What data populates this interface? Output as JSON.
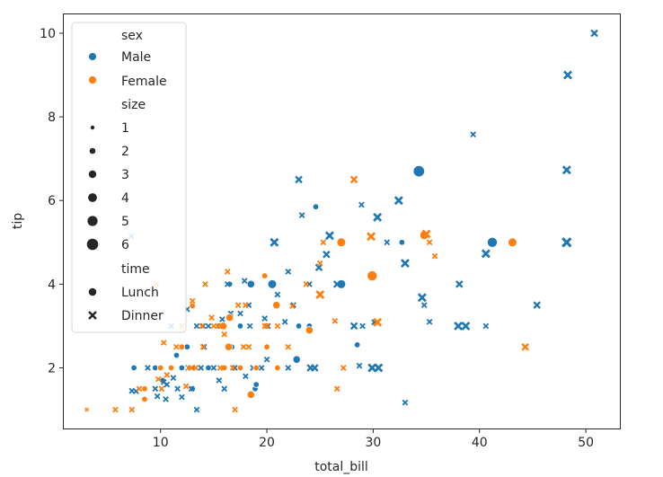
{
  "chart_data": {
    "type": "scatter",
    "xlabel": "total_bill",
    "ylabel": "tip",
    "xlim": [
      0.9,
      53.2
    ],
    "ylim": [
      0.55,
      10.45
    ],
    "xticks": [
      10,
      20,
      30,
      40,
      50
    ],
    "yticks": [
      2,
      4,
      6,
      8,
      10
    ],
    "grid": false,
    "legend_position": "upper-left",
    "legend": {
      "hue_title": "sex",
      "hue": [
        {
          "label": "Male",
          "color": "#1f77b4"
        },
        {
          "label": "Female",
          "color": "#ff7f0e"
        }
      ],
      "size_title": "size",
      "sizes": [
        "1",
        "2",
        "3",
        "4",
        "5",
        "6"
      ],
      "style_title": "time",
      "styles": [
        {
          "label": "Lunch",
          "marker": "circle"
        },
        {
          "label": "Dinner",
          "marker": "x"
        }
      ]
    },
    "series": [
      {
        "name": "Male / Lunch",
        "sex": "Male",
        "time": "Lunch",
        "color": "#1f77b4",
        "marker": "circle",
        "points": [
          [
            34.3,
            6.7,
            6
          ],
          [
            41.2,
            5.0,
            5
          ],
          [
            24.6,
            5.85,
            2
          ],
          [
            32.7,
            5.0,
            2
          ],
          [
            27.0,
            4.0,
            4
          ],
          [
            20.5,
            4.0,
            4
          ],
          [
            18.5,
            4.0,
            3
          ],
          [
            16.5,
            4.0,
            2
          ],
          [
            28.5,
            2.55,
            2
          ],
          [
            22.8,
            2.2,
            3
          ],
          [
            18.9,
            1.5,
            2
          ],
          [
            11.5,
            2.3,
            2
          ],
          [
            7.5,
            2.0,
            2
          ],
          [
            9.5,
            2.0,
            2
          ],
          [
            12.5,
            2.5,
            2
          ],
          [
            14.5,
            2.0,
            2
          ],
          [
            16.0,
            2.0,
            2
          ],
          [
            19.0,
            1.6,
            2
          ],
          [
            13.0,
            1.5,
            2
          ],
          [
            12.0,
            2.0,
            2
          ],
          [
            16.7,
            2.5,
            2
          ],
          [
            17.5,
            3.0,
            2
          ],
          [
            20.0,
            3.0,
            2
          ],
          [
            24.0,
            3.0,
            2
          ],
          [
            10.2,
            1.7,
            2
          ],
          [
            15.5,
            3.0,
            2
          ],
          [
            23.0,
            3.0,
            2
          ]
        ]
      },
      {
        "name": "Male / Dinner",
        "sex": "Male",
        "time": "Dinner",
        "color": "#1f77b4",
        "marker": "x",
        "points": [
          [
            50.8,
            10.0,
            3
          ],
          [
            48.3,
            9.0,
            4
          ],
          [
            39.4,
            7.58,
            2
          ],
          [
            48.2,
            6.73,
            4
          ],
          [
            23.0,
            6.5,
            3
          ],
          [
            32.4,
            6.0,
            4
          ],
          [
            28.9,
            5.9,
            2
          ],
          [
            30.4,
            5.6,
            4
          ],
          [
            23.3,
            5.65,
            2
          ],
          [
            20.7,
            5.0,
            4
          ],
          [
            25.9,
            5.16,
            4
          ],
          [
            29.8,
            5.14,
            2
          ],
          [
            31.3,
            5.0,
            2
          ],
          [
            48.2,
            5.0,
            5
          ],
          [
            40.6,
            4.73,
            4
          ],
          [
            25.6,
            4.71,
            3
          ],
          [
            33.0,
            4.5,
            4
          ],
          [
            24.9,
            4.4,
            3
          ],
          [
            24.0,
            4.0,
            2
          ],
          [
            38.1,
            4.0,
            3
          ],
          [
            26.6,
            4.0,
            3
          ],
          [
            22.0,
            4.3,
            2
          ],
          [
            21.0,
            3.75,
            2
          ],
          [
            34.6,
            3.68,
            4
          ],
          [
            34.8,
            3.5,
            2
          ],
          [
            45.4,
            3.5,
            3
          ],
          [
            38.0,
            3.0,
            4
          ],
          [
            38.7,
            3.0,
            4
          ],
          [
            40.6,
            3.0,
            2
          ],
          [
            30.1,
            3.09,
            2
          ],
          [
            35.3,
            3.1,
            2
          ],
          [
            28.2,
            3.0,
            3
          ],
          [
            29.0,
            3.0,
            2
          ],
          [
            30.5,
            2.0,
            4
          ],
          [
            29.9,
            2.0,
            4
          ],
          [
            28.7,
            2.05,
            2
          ],
          [
            24.1,
            2.0,
            3
          ],
          [
            24.5,
            2.0,
            3
          ],
          [
            33.0,
            1.17,
            2
          ],
          [
            22.5,
            3.5,
            2
          ],
          [
            20.9,
            3.5,
            2
          ],
          [
            19.8,
            3.18,
            2
          ],
          [
            20.1,
            3.0,
            2
          ],
          [
            18.4,
            3.0,
            2
          ],
          [
            18.3,
            3.5,
            2
          ],
          [
            17.9,
            4.08,
            2
          ],
          [
            16.3,
            4.0,
            2
          ],
          [
            17.5,
            3.3,
            2
          ],
          [
            16.6,
            3.3,
            2
          ],
          [
            15.0,
            2.0,
            2
          ],
          [
            15.8,
            3.16,
            2
          ],
          [
            14.5,
            3.0,
            2
          ],
          [
            14.1,
            2.5,
            2
          ],
          [
            13.8,
            2.0,
            2
          ],
          [
            13.4,
            3.0,
            2
          ],
          [
            12.9,
            1.5,
            2
          ],
          [
            12.6,
            2.0,
            2
          ],
          [
            11.6,
            1.5,
            2
          ],
          [
            10.6,
            1.6,
            2
          ],
          [
            10.3,
            1.66,
            2
          ],
          [
            9.5,
            1.5,
            2
          ],
          [
            8.8,
            2.0,
            2
          ],
          [
            7.7,
            1.44,
            2
          ],
          [
            7.3,
            1.45,
            2
          ],
          [
            7.25,
            5.15,
            2
          ],
          [
            11.2,
            1.76,
            2
          ],
          [
            13.0,
            2.0,
            2
          ],
          [
            15.5,
            1.7,
            2
          ],
          [
            16.0,
            1.5,
            2
          ],
          [
            18.0,
            1.8,
            2
          ],
          [
            18.7,
            2.0,
            2
          ],
          [
            19.5,
            2.0,
            2
          ],
          [
            20.0,
            2.2,
            2
          ],
          [
            17.0,
            2.0,
            2
          ],
          [
            16.5,
            2.5,
            2
          ],
          [
            22.0,
            2.0,
            2
          ],
          [
            12.0,
            1.3,
            2
          ],
          [
            10.5,
            1.25,
            2
          ],
          [
            9.7,
            1.32,
            2
          ],
          [
            13.4,
            1.0,
            2
          ],
          [
            12.5,
            3.4,
            2
          ],
          [
            11.0,
            3.0,
            2
          ],
          [
            14.0,
            3.0,
            2
          ],
          [
            21.7,
            3.1,
            2
          ]
        ]
      },
      {
        "name": "Female / Lunch",
        "sex": "Female",
        "time": "Lunch",
        "color": "#ff7f0e",
        "marker": "circle",
        "points": [
          [
            43.1,
            5.0,
            4
          ],
          [
            27.0,
            5.0,
            4
          ],
          [
            34.8,
            5.17,
            4
          ],
          [
            29.9,
            4.2,
            5
          ],
          [
            19.8,
            4.2,
            2
          ],
          [
            20.9,
            3.5,
            3
          ],
          [
            16.5,
            3.2,
            3
          ],
          [
            15.9,
            3.0,
            3
          ],
          [
            16.4,
            2.5,
            3
          ],
          [
            17.5,
            2.0,
            2
          ],
          [
            19.0,
            2.0,
            2
          ],
          [
            20.0,
            2.5,
            2
          ],
          [
            16.0,
            2.0,
            2
          ],
          [
            12.0,
            2.5,
            2
          ],
          [
            10.0,
            2.0,
            2
          ],
          [
            8.5,
            1.5,
            2
          ],
          [
            8.5,
            1.25,
            2
          ],
          [
            18.5,
            1.36,
            3
          ],
          [
            13.0,
            3.48,
            2
          ],
          [
            21.0,
            2.0,
            2
          ],
          [
            24.0,
            2.9,
            3
          ],
          [
            11.0,
            2.0,
            2
          ],
          [
            12.7,
            2.0,
            2
          ]
        ]
      },
      {
        "name": "Female / Dinner",
        "sex": "Female",
        "time": "Dinner",
        "color": "#ff7f0e",
        "marker": "x",
        "points": [
          [
            28.2,
            6.5,
            3
          ],
          [
            29.8,
            5.14,
            4
          ],
          [
            35.0,
            5.2,
            4
          ],
          [
            35.3,
            5.0,
            2
          ],
          [
            35.8,
            4.67,
            2
          ],
          [
            25.3,
            5.0,
            2
          ],
          [
            25.0,
            3.75,
            4
          ],
          [
            30.4,
            3.09,
            4
          ],
          [
            44.3,
            2.5,
            3
          ],
          [
            27.2,
            2.0,
            2
          ],
          [
            26.6,
            1.5,
            2
          ],
          [
            26.4,
            3.12,
            2
          ],
          [
            17.0,
            1.0,
            2
          ],
          [
            5.75,
            1.0,
            2
          ],
          [
            3.07,
            1.0,
            1
          ],
          [
            7.3,
            1.0,
            2
          ],
          [
            9.6,
            4.0,
            2
          ],
          [
            10.3,
            2.6,
            2
          ],
          [
            12.4,
            1.56,
            2
          ],
          [
            13.9,
            3.0,
            2
          ],
          [
            14.2,
            4.0,
            2
          ],
          [
            15.0,
            3.0,
            2
          ],
          [
            16.3,
            4.3,
            2
          ],
          [
            17.3,
            3.5,
            2
          ],
          [
            18.0,
            3.5,
            2
          ],
          [
            19.8,
            3.0,
            2
          ],
          [
            21.0,
            3.0,
            2
          ],
          [
            22.4,
            3.48,
            2
          ],
          [
            20.0,
            3.0,
            2
          ],
          [
            14.8,
            3.2,
            2
          ],
          [
            11.5,
            2.5,
            2
          ],
          [
            10.6,
            1.83,
            2
          ],
          [
            12.9,
            2.0,
            2
          ],
          [
            13.3,
            2.0,
            2
          ],
          [
            15.6,
            2.0,
            2
          ],
          [
            16.8,
            2.0,
            2
          ],
          [
            9.8,
            1.73,
            2
          ],
          [
            10.1,
            1.5,
            2
          ],
          [
            8.0,
            1.5,
            2
          ],
          [
            23.7,
            4.0,
            2
          ],
          [
            18.3,
            2.5,
            2
          ],
          [
            15.4,
            3.0,
            2
          ],
          [
            12.0,
            3.0,
            2
          ],
          [
            17.8,
            2.5,
            2
          ],
          [
            25.0,
            4.5,
            2
          ],
          [
            22.0,
            2.5,
            2
          ],
          [
            13.0,
            3.6,
            2
          ],
          [
            14.0,
            2.5,
            2
          ],
          [
            16.0,
            2.8,
            2
          ]
        ]
      }
    ]
  }
}
